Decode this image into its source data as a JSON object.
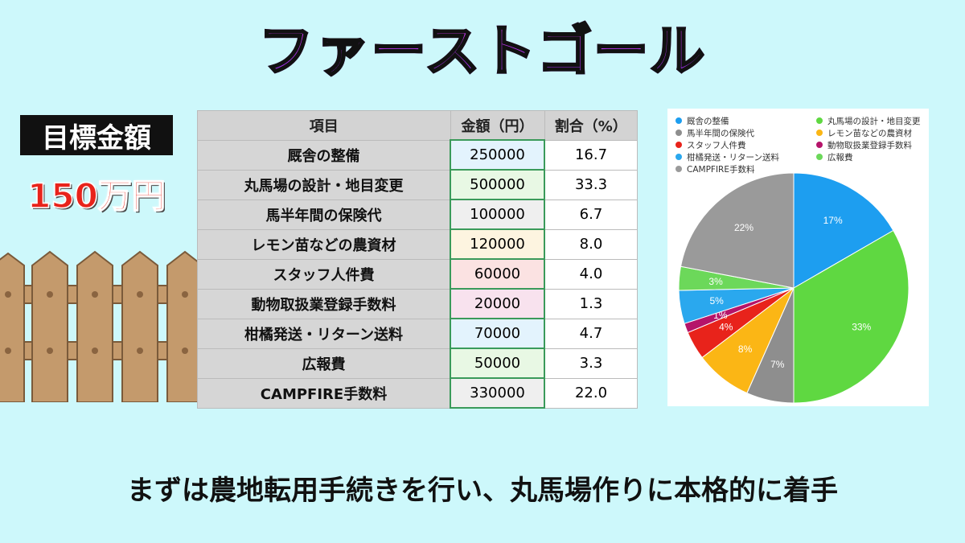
{
  "title": "ファーストゴール",
  "goal": {
    "label": "目標金額",
    "amount": "150万円"
  },
  "table": {
    "headers": [
      "項目",
      "金額（円）",
      "割合（%）"
    ],
    "rows": [
      {
        "item": "厩舎の整備",
        "amount": "250000",
        "pct": "16.7",
        "bg": "#e3f3fd"
      },
      {
        "item": "丸馬場の設計・地目変更",
        "amount": "500000",
        "pct": "33.3",
        "bg": "#e8f8e4"
      },
      {
        "item": "馬半年間の保険代",
        "amount": "100000",
        "pct": "6.7",
        "bg": "#efefef"
      },
      {
        "item": "レモン苗などの農資材",
        "amount": "120000",
        "pct": "8.0",
        "bg": "#fdf4e0"
      },
      {
        "item": "スタッフ人件費",
        "amount": "60000",
        "pct": "4.0",
        "bg": "#fbe2e2"
      },
      {
        "item": "動物取扱業登録手数料",
        "amount": "20000",
        "pct": "1.3",
        "bg": "#f8e2ee"
      },
      {
        "item": "柑橘発送・リターン送料",
        "amount": "70000",
        "pct": "4.7",
        "bg": "#e3f3fd"
      },
      {
        "item": "広報費",
        "amount": "50000",
        "pct": "3.3",
        "bg": "#e8f8e4"
      },
      {
        "item": "CAMPFIRE手数料",
        "amount": "330000",
        "pct": "22.0",
        "bg": "#efefef"
      }
    ]
  },
  "chart_data": {
    "type": "pie",
    "labels": [
      "厩舎の整備",
      "丸馬場の設計・地目変更",
      "馬半年間の保険代",
      "レモン苗などの農資材",
      "スタッフ人件費",
      "動物取扱業登録手数料",
      "柑橘発送・リターン送料",
      "広報費",
      "CAMPFIRE手数料"
    ],
    "values": [
      250000,
      500000,
      100000,
      120000,
      60000,
      20000,
      70000,
      50000,
      330000
    ],
    "data_labels": [
      "17%",
      "33%",
      "7%",
      "8%",
      "4%",
      "1%",
      "5%",
      "3%",
      "22%"
    ],
    "colors": [
      "#1d9ef0",
      "#5fd841",
      "#8e8e8e",
      "#fbb615",
      "#e8231b",
      "#b5146a",
      "#2aa8ee",
      "#6cd85a",
      "#9a9a9a"
    ],
    "legend_placement": "top"
  },
  "bottom_text": "まずは農地転用手続きを行い、丸馬場作りに本格的に着手"
}
